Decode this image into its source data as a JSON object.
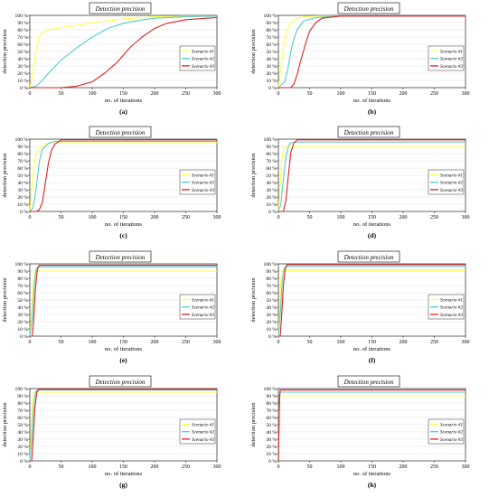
{
  "figure": {
    "panel_labels": [
      "(a)",
      "(b)",
      "(c)",
      "(d)",
      "(e)",
      "(f)",
      "(g)",
      "(h)"
    ]
  },
  "colors": {
    "scenario1": "#ffff44",
    "scenario2": "#55cccc",
    "scenario3": "#dd2222",
    "grid": "#e4e4e4",
    "axis": "#000000"
  },
  "chart_data": [
    {
      "type": "line",
      "panel": "(a)",
      "title": "Detection precision",
      "xlabel": "no. of iterations",
      "ylabel": "detection precision",
      "xlim": [
        0,
        300
      ],
      "ylim": [
        0,
        100
      ],
      "xticks": [
        "0",
        "50",
        "100",
        "150",
        "200",
        "250",
        "300"
      ],
      "yticks": [
        "0 %",
        "10 %",
        "20 %",
        "30 %",
        "40 %",
        "50 %",
        "60 %",
        "70 %",
        "80 %",
        "90 %",
        "100 %"
      ],
      "grid": "horizontal",
      "legend_position": "right",
      "series": [
        {
          "name": "Scenario #1",
          "x": [
            0,
            5,
            10,
            15,
            20,
            30,
            50,
            80,
            100,
            150,
            200,
            250,
            300
          ],
          "y": [
            0,
            20,
            52,
            70,
            76,
            80,
            83,
            87,
            90,
            95,
            98,
            99,
            99
          ]
        },
        {
          "name": "Scenario #2",
          "x": [
            0,
            10,
            20,
            30,
            50,
            75,
            100,
            125,
            150,
            175,
            200,
            250,
            300
          ],
          "y": [
            0,
            2,
            10,
            20,
            38,
            55,
            70,
            82,
            89,
            93,
            96,
            98,
            99
          ]
        },
        {
          "name": "Scenario #3",
          "x": [
            0,
            50,
            75,
            100,
            120,
            140,
            150,
            160,
            180,
            200,
            220,
            250,
            300
          ],
          "y": [
            0,
            0,
            2,
            8,
            20,
            35,
            45,
            55,
            70,
            82,
            89,
            94,
            97
          ]
        }
      ]
    },
    {
      "type": "line",
      "panel": "(b)",
      "title": "Detection precision",
      "xlabel": "no. of iterations",
      "ylabel": "detection precision",
      "xlim": [
        0,
        300
      ],
      "ylim": [
        0,
        100
      ],
      "xticks": [
        "0",
        "50",
        "100",
        "150",
        "200",
        "250",
        "300"
      ],
      "yticks": [
        "0 %",
        "10 %",
        "20 %",
        "30 %",
        "40 %",
        "50 %",
        "60 %",
        "70 %",
        "80 %",
        "90 %",
        "100 %"
      ],
      "grid": "horizontal",
      "legend_position": "right",
      "series": [
        {
          "name": "Scenario #1",
          "x": [
            0,
            5,
            10,
            15,
            20,
            30,
            40,
            60,
            300
          ],
          "y": [
            0,
            35,
            65,
            82,
            90,
            96,
            98,
            99,
            99
          ]
        },
        {
          "name": "Scenario #2",
          "x": [
            0,
            10,
            15,
            20,
            25,
            30,
            40,
            60,
            100,
            300
          ],
          "y": [
            0,
            8,
            25,
            50,
            68,
            80,
            92,
            97,
            99,
            99
          ]
        },
        {
          "name": "Scenario #3",
          "x": [
            0,
            20,
            25,
            30,
            35,
            40,
            45,
            50,
            60,
            70,
            100,
            300
          ],
          "y": [
            0,
            0,
            5,
            18,
            35,
            50,
            65,
            78,
            90,
            96,
            99,
            99
          ]
        }
      ]
    },
    {
      "type": "line",
      "panel": "(c)",
      "title": "Detection precision",
      "xlabel": "no. of iterations",
      "ylabel": "detection precision",
      "xlim": [
        0,
        300
      ],
      "ylim": [
        0,
        100
      ],
      "xticks": [
        "0",
        "50",
        "100",
        "150",
        "200",
        "250",
        "300"
      ],
      "yticks": [
        "0 %",
        "10 %",
        "20 %",
        "30 %",
        "40 %",
        "50 %",
        "60 %",
        "70 %",
        "80 %",
        "90 %",
        "100 %"
      ],
      "grid": "horizontal",
      "legend_position": "right",
      "series": [
        {
          "name": "Scenario #1",
          "x": [
            0,
            3,
            6,
            10,
            15,
            20,
            30,
            300
          ],
          "y": [
            0,
            30,
            60,
            80,
            88,
            92,
            95,
            95
          ]
        },
        {
          "name": "Scenario #2",
          "x": [
            0,
            5,
            10,
            15,
            20,
            30,
            40,
            300
          ],
          "y": [
            0,
            5,
            30,
            68,
            86,
            94,
            97,
            97
          ]
        },
        {
          "name": "Scenario #3",
          "x": [
            0,
            10,
            15,
            20,
            25,
            30,
            35,
            40,
            50,
            300
          ],
          "y": [
            0,
            0,
            2,
            12,
            40,
            68,
            85,
            93,
            99,
            99
          ]
        }
      ]
    },
    {
      "type": "line",
      "panel": "(d)",
      "title": "Detection precision",
      "xlabel": "no. of iterations",
      "ylabel": "detection precision",
      "xlim": [
        0,
        300
      ],
      "ylim": [
        0,
        100
      ],
      "xticks": [
        "0",
        "50",
        "100",
        "150",
        "200",
        "250",
        "300"
      ],
      "yticks": [
        "0 %",
        "10 %",
        "20 %",
        "30 %",
        "40 %",
        "50 %",
        "60 %",
        "70 %",
        "80 %",
        "90 %",
        "100 %"
      ],
      "grid": "horizontal",
      "legend_position": "right",
      "series": [
        {
          "name": "Scenario #1",
          "x": [
            0,
            2,
            4,
            6,
            8,
            12,
            300
          ],
          "y": [
            0,
            25,
            55,
            75,
            85,
            90,
            90
          ]
        },
        {
          "name": "Scenario #2",
          "x": [
            0,
            4,
            8,
            12,
            16,
            20,
            30,
            300
          ],
          "y": [
            0,
            10,
            45,
            75,
            90,
            95,
            96,
            96
          ]
        },
        {
          "name": "Scenario #3",
          "x": [
            0,
            8,
            12,
            16,
            20,
            25,
            30,
            300
          ],
          "y": [
            0,
            0,
            15,
            50,
            82,
            95,
            99,
            99
          ]
        }
      ]
    },
    {
      "type": "line",
      "panel": "(e)",
      "title": "Detection precision",
      "xlabel": "no. of iterations",
      "ylabel": "detection precision",
      "xlim": [
        0,
        300
      ],
      "ylim": [
        0,
        100
      ],
      "xticks": [
        "0",
        "50",
        "100",
        "150",
        "200",
        "250",
        "300"
      ],
      "yticks": [
        "0 %",
        "10 %",
        "20 %",
        "30 %",
        "40 %",
        "50 %",
        "60 %",
        "70 %",
        "80 %",
        "90 %",
        "100 %"
      ],
      "grid": "horizontal",
      "legend_position": "right",
      "series": [
        {
          "name": "Scenario #1",
          "x": [
            0,
            3,
            6,
            9,
            300
          ],
          "y": [
            0,
            40,
            80,
            90,
            90
          ]
        },
        {
          "name": "Scenario #2",
          "x": [
            0,
            4,
            7,
            10,
            13,
            300
          ],
          "y": [
            0,
            25,
            70,
            92,
            96,
            96
          ]
        },
        {
          "name": "Scenario #3",
          "x": [
            0,
            4,
            6,
            9,
            12,
            15,
            300
          ],
          "y": [
            0,
            0,
            20,
            65,
            92,
            98,
            98
          ]
        }
      ]
    },
    {
      "type": "line",
      "panel": "(f)",
      "title": "Detection precision",
      "xlabel": "no. of iterations",
      "ylabel": "detection precision",
      "xlim": [
        0,
        300
      ],
      "ylim": [
        0,
        100
      ],
      "xticks": [
        "0",
        "50",
        "100",
        "150",
        "200",
        "250",
        "300"
      ],
      "yticks": [
        "0 %",
        "10 %",
        "20 %",
        "30 %",
        "40 %",
        "50 %",
        "60 %",
        "70 %",
        "80 %",
        "90 %",
        "100 %"
      ],
      "grid": "horizontal",
      "legend_position": "right",
      "series": [
        {
          "name": "Scenario #1",
          "x": [
            0,
            2,
            4,
            6,
            300
          ],
          "y": [
            0,
            40,
            80,
            91,
            91
          ]
        },
        {
          "name": "Scenario #2",
          "x": [
            0,
            3,
            6,
            9,
            12,
            300
          ],
          "y": [
            0,
            30,
            75,
            93,
            97,
            97
          ]
        },
        {
          "name": "Scenario #3",
          "x": [
            0,
            3,
            5,
            8,
            11,
            14,
            300
          ],
          "y": [
            0,
            0,
            25,
            70,
            93,
            99,
            99
          ]
        }
      ]
    },
    {
      "type": "line",
      "panel": "(g)",
      "title": "Detection precision",
      "xlabel": "no. of iterations",
      "ylabel": "detection precision",
      "xlim": [
        0,
        300
      ],
      "ylim": [
        0,
        100
      ],
      "xticks": [
        "0",
        "50",
        "100",
        "150",
        "200",
        "250",
        "300"
      ],
      "yticks": [
        "0 %",
        "10 %",
        "20 %",
        "30 %",
        "40 %",
        "50 %",
        "60 %",
        "70 %",
        "80 %",
        "90 %",
        "100 %"
      ],
      "grid": "horizontal",
      "legend_position": "right",
      "series": [
        {
          "name": "Scenario #1",
          "x": [
            0,
            2,
            4,
            6,
            300
          ],
          "y": [
            0,
            40,
            80,
            95,
            95
          ]
        },
        {
          "name": "Scenario #2",
          "x": [
            0,
            3,
            6,
            9,
            12,
            300
          ],
          "y": [
            0,
            30,
            75,
            95,
            98,
            98
          ]
        },
        {
          "name": "Scenario #3",
          "x": [
            0,
            3,
            5,
            8,
            11,
            14,
            300
          ],
          "y": [
            0,
            0,
            25,
            72,
            94,
            99,
            99
          ]
        }
      ]
    },
    {
      "type": "line",
      "panel": "(h)",
      "title": "Detection precision",
      "xlabel": "no. of iterations",
      "ylabel": "detection precision",
      "xlim": [
        0,
        300
      ],
      "ylim": [
        0,
        100
      ],
      "xticks": [
        "0",
        "50",
        "100",
        "150",
        "200",
        "250",
        "300"
      ],
      "yticks": [
        "0 %",
        "10 %",
        "20 %",
        "30 %",
        "40 %",
        "50 %",
        "60 %",
        "70 %",
        "80 %",
        "90 %",
        "100 %"
      ],
      "grid": "horizontal",
      "legend_position": "right",
      "series": [
        {
          "name": "Scenario #1",
          "x": [
            0,
            1,
            2,
            300
          ],
          "y": [
            0,
            70,
            90,
            90
          ]
        },
        {
          "name": "Scenario #2",
          "x": [
            0,
            1,
            2,
            3,
            300
          ],
          "y": [
            0,
            55,
            88,
            95,
            95
          ]
        },
        {
          "name": "Scenario #3",
          "x": [
            0,
            1,
            2,
            3,
            300
          ],
          "y": [
            0,
            45,
            90,
            98,
            98
          ]
        }
      ]
    }
  ]
}
